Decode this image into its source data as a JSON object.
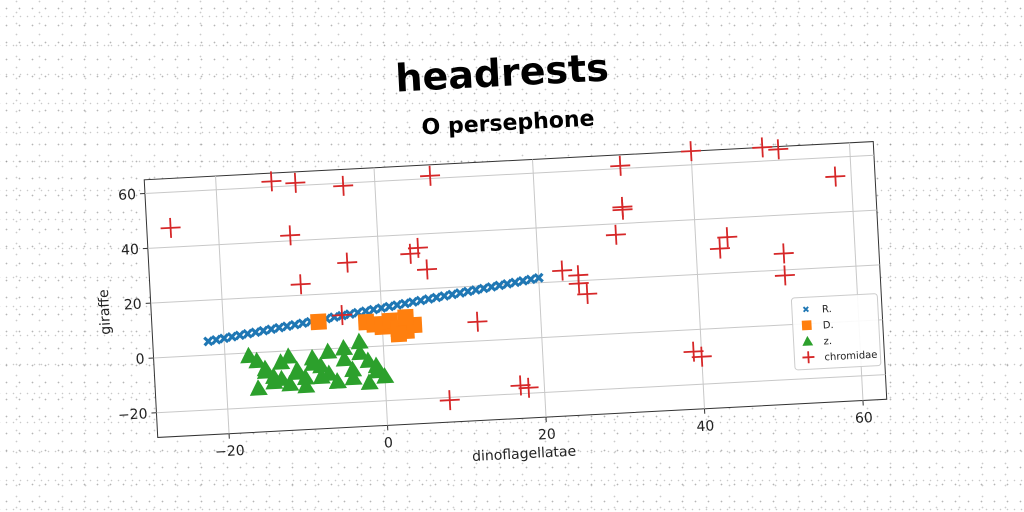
{
  "chart_data": {
    "type": "scatter",
    "title": "headrests",
    "subtitle": "O persephone",
    "xlabel": "dinoflagellatae",
    "ylabel": "giraffe",
    "xlim": [
      -29,
      63
    ],
    "ylim": [
      -29,
      65
    ],
    "xticks": [
      -20,
      0,
      20,
      40,
      60
    ],
    "yticks": [
      -20,
      0,
      20,
      40,
      60
    ],
    "xtick_labels": [
      "−20",
      "0",
      "20",
      "40",
      "60"
    ],
    "ytick_labels": [
      "−20",
      "0",
      "20",
      "40",
      "60"
    ],
    "grid": true,
    "legend_position": "lower-right",
    "colors": {
      "R.": "#1f77b4",
      "D.": "#ff7f0e",
      "z.": "#2ca02c",
      "chromidae": "#d62728"
    },
    "series": [
      {
        "name": "R.",
        "marker": "x-filled",
        "x": [
          -22,
          -21,
          -20,
          -19,
          -18,
          -17,
          -16,
          -15,
          -14,
          -13,
          -12,
          -11,
          -10,
          -9,
          -8,
          -7,
          -6,
          -5,
          -4,
          -3,
          -2,
          -1,
          0,
          1,
          2,
          3,
          4,
          5,
          6,
          7,
          8,
          9,
          10,
          11,
          12,
          13,
          14,
          15,
          16,
          17,
          18,
          19,
          20
        ],
        "y": [
          5.0,
          5.4,
          5.8,
          6.2,
          6.6,
          7.0,
          7.4,
          7.8,
          8.2,
          8.6,
          9.0,
          9.4,
          9.8,
          10.2,
          10.6,
          11.0,
          11.4,
          11.8,
          12.2,
          12.6,
          13.0,
          13.4,
          13.8,
          14.2,
          14.6,
          15.0,
          15.4,
          15.8,
          16.2,
          16.6,
          17.0,
          17.4,
          17.8,
          18.2,
          18.6,
          19.0,
          19.4,
          19.8,
          20.2,
          20.6,
          21.0,
          21.4,
          21.8
        ]
      },
      {
        "name": "D.",
        "marker": "square",
        "x": [
          -8,
          -2,
          -1,
          0,
          1,
          2,
          3,
          4,
          2,
          3
        ],
        "y": [
          10,
          9,
          8,
          7,
          9,
          6,
          5,
          7,
          4,
          10
        ],
        "y_note_removed": true
      },
      {
        "name": "z.",
        "marker": "triangle",
        "x": [
          -17,
          -16,
          -15,
          -14,
          -13,
          -12,
          -11,
          -10,
          -9,
          -8,
          -7,
          -6,
          -5,
          -4,
          -3,
          -2,
          -1,
          0,
          -16,
          -14,
          -12,
          -10,
          -8,
          -6,
          -4,
          -2,
          -1,
          -3,
          -5,
          -7,
          -9,
          -11,
          -13,
          -15
        ],
        "y": [
          -1,
          -3,
          -6,
          -9,
          -4,
          -2,
          -7,
          -10,
          -3,
          -6,
          -9,
          -12,
          -4,
          -8,
          -2,
          -5,
          -9,
          -11,
          -13,
          -11,
          -12,
          -13,
          -10,
          -12,
          -11,
          -13,
          -7,
          2,
          0,
          -1,
          -5,
          -8,
          -10,
          -7
        ]
      },
      {
        "name": "chromidae",
        "marker": "plus",
        "x": [
          -26,
          -13,
          -10,
          -11,
          -10,
          -4,
          -4,
          4,
          6,
          5,
          7,
          -5,
          12,
          8,
          17,
          18,
          23,
          25,
          25,
          26,
          30,
          31,
          31,
          31,
          39,
          40,
          40,
          43,
          44,
          49,
          51,
          51,
          51,
          58
        ],
        "y": [
          47,
          62,
          61,
          42,
          24,
          31,
          59,
          33,
          27,
          35,
          61,
          12,
          7,
          -21,
          -17,
          -18,
          24,
          19,
          22,
          15,
          36,
          45,
          46,
          61,
          -8,
          -10,
          65,
          29,
          33,
          65,
          64,
          18,
          26,
          53
        ]
      }
    ]
  }
}
